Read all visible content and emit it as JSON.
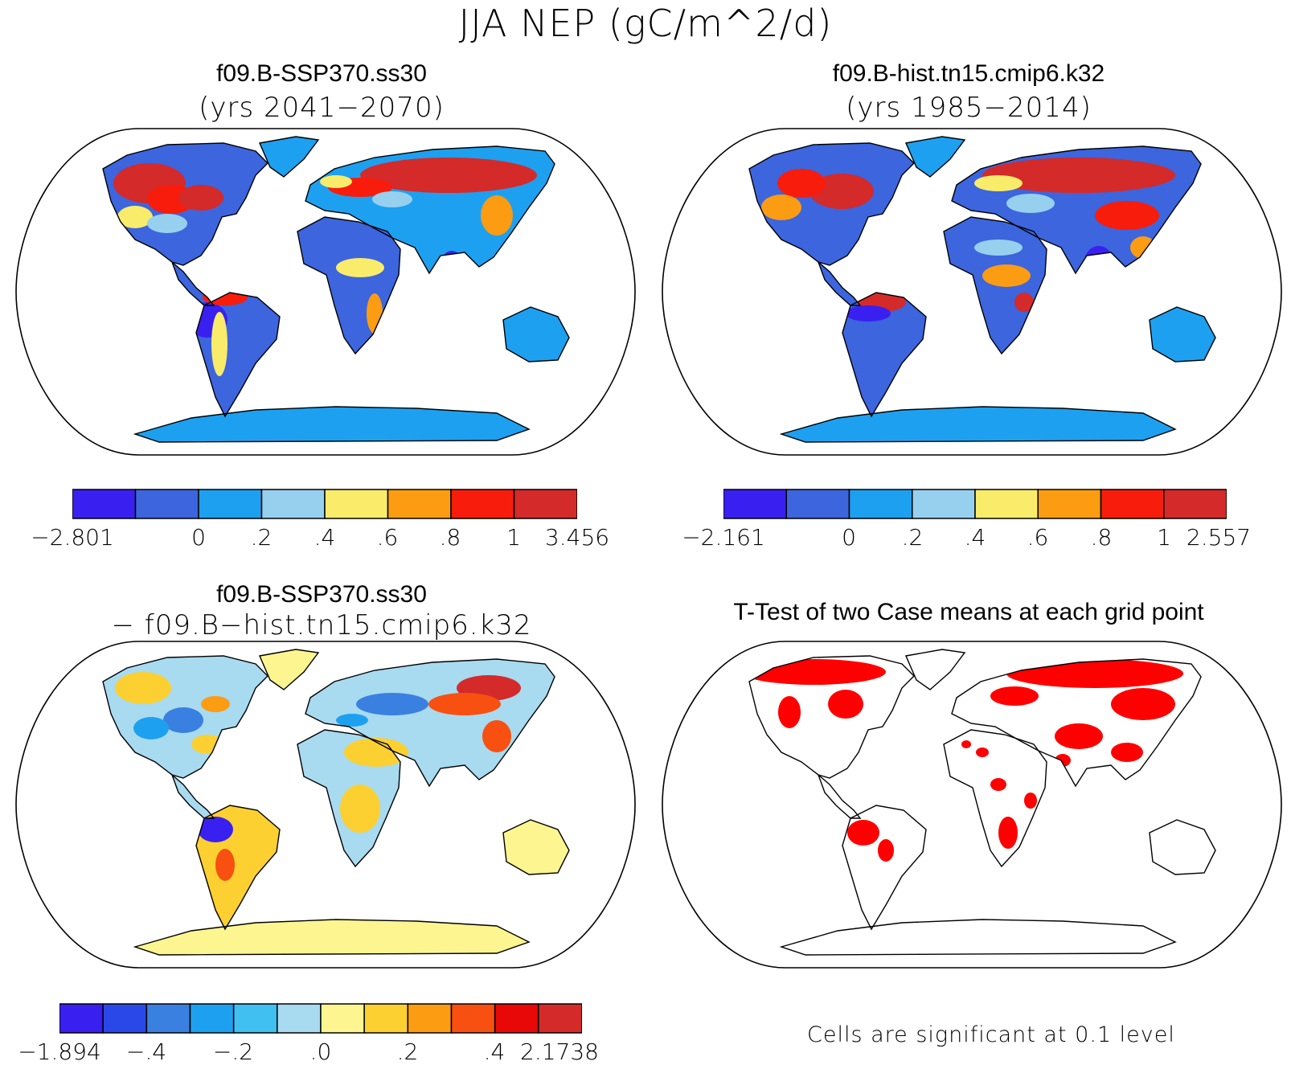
{
  "figure": {
    "title": "JJA NEP (gC/m^2/d)"
  },
  "panels": [
    {
      "id": "case1",
      "title": "f09.B-SSP370.ss30",
      "subtitle": "(yrs 2041−2070)",
      "map_style": "case1",
      "colorbar": {
        "colors": [
          "#3a20f0",
          "#3c65de",
          "#1ea0f0",
          "#96d0ee",
          "#f8ec6a",
          "#fb9c12",
          "#f81c0c",
          "#d42a2a"
        ],
        "labels": [
          "−2.801",
          "0",
          ".2",
          ".4",
          ".6",
          ".8",
          "1",
          "3.456"
        ]
      }
    },
    {
      "id": "case2",
      "title": "f09.B-hist.tn15.cmip6.k32",
      "subtitle": "(yrs 1985−2014)",
      "map_style": "case2",
      "colorbar": {
        "colors": [
          "#3a20f0",
          "#3c65de",
          "#1ea0f0",
          "#96d0ee",
          "#f8ec6a",
          "#fb9c12",
          "#f81c0c",
          "#d42a2a"
        ],
        "labels": [
          "−2.161",
          "0",
          ".2",
          ".4",
          ".6",
          ".8",
          "1",
          "2.557"
        ]
      }
    },
    {
      "id": "diff",
      "title": "f09.B-SSP370.ss30",
      "subtitle": "− f09.B−hist.tn15.cmip6.k32",
      "map_style": "diff",
      "colorbar": {
        "colors": [
          "#3a20f0",
          "#2a48e8",
          "#3a80e0",
          "#1ea0f0",
          "#40c0f0",
          "#a8daf0",
          "#fcf590",
          "#fcd030",
          "#fb9c12",
          "#f85010",
          "#e80808",
          "#d42a2a"
        ],
        "labels": [
          "−1.894",
          "−.4",
          "−.2",
          ".0",
          ".2",
          ".4",
          "2.1738"
        ]
      }
    },
    {
      "id": "ttest",
      "title": "T-Test of two Case means at each grid point",
      "map_style": "ttest",
      "note": "Cells are significant at 0.1 level"
    }
  ],
  "colors": {
    "outline": "#000000",
    "significant": "#ff0000"
  }
}
